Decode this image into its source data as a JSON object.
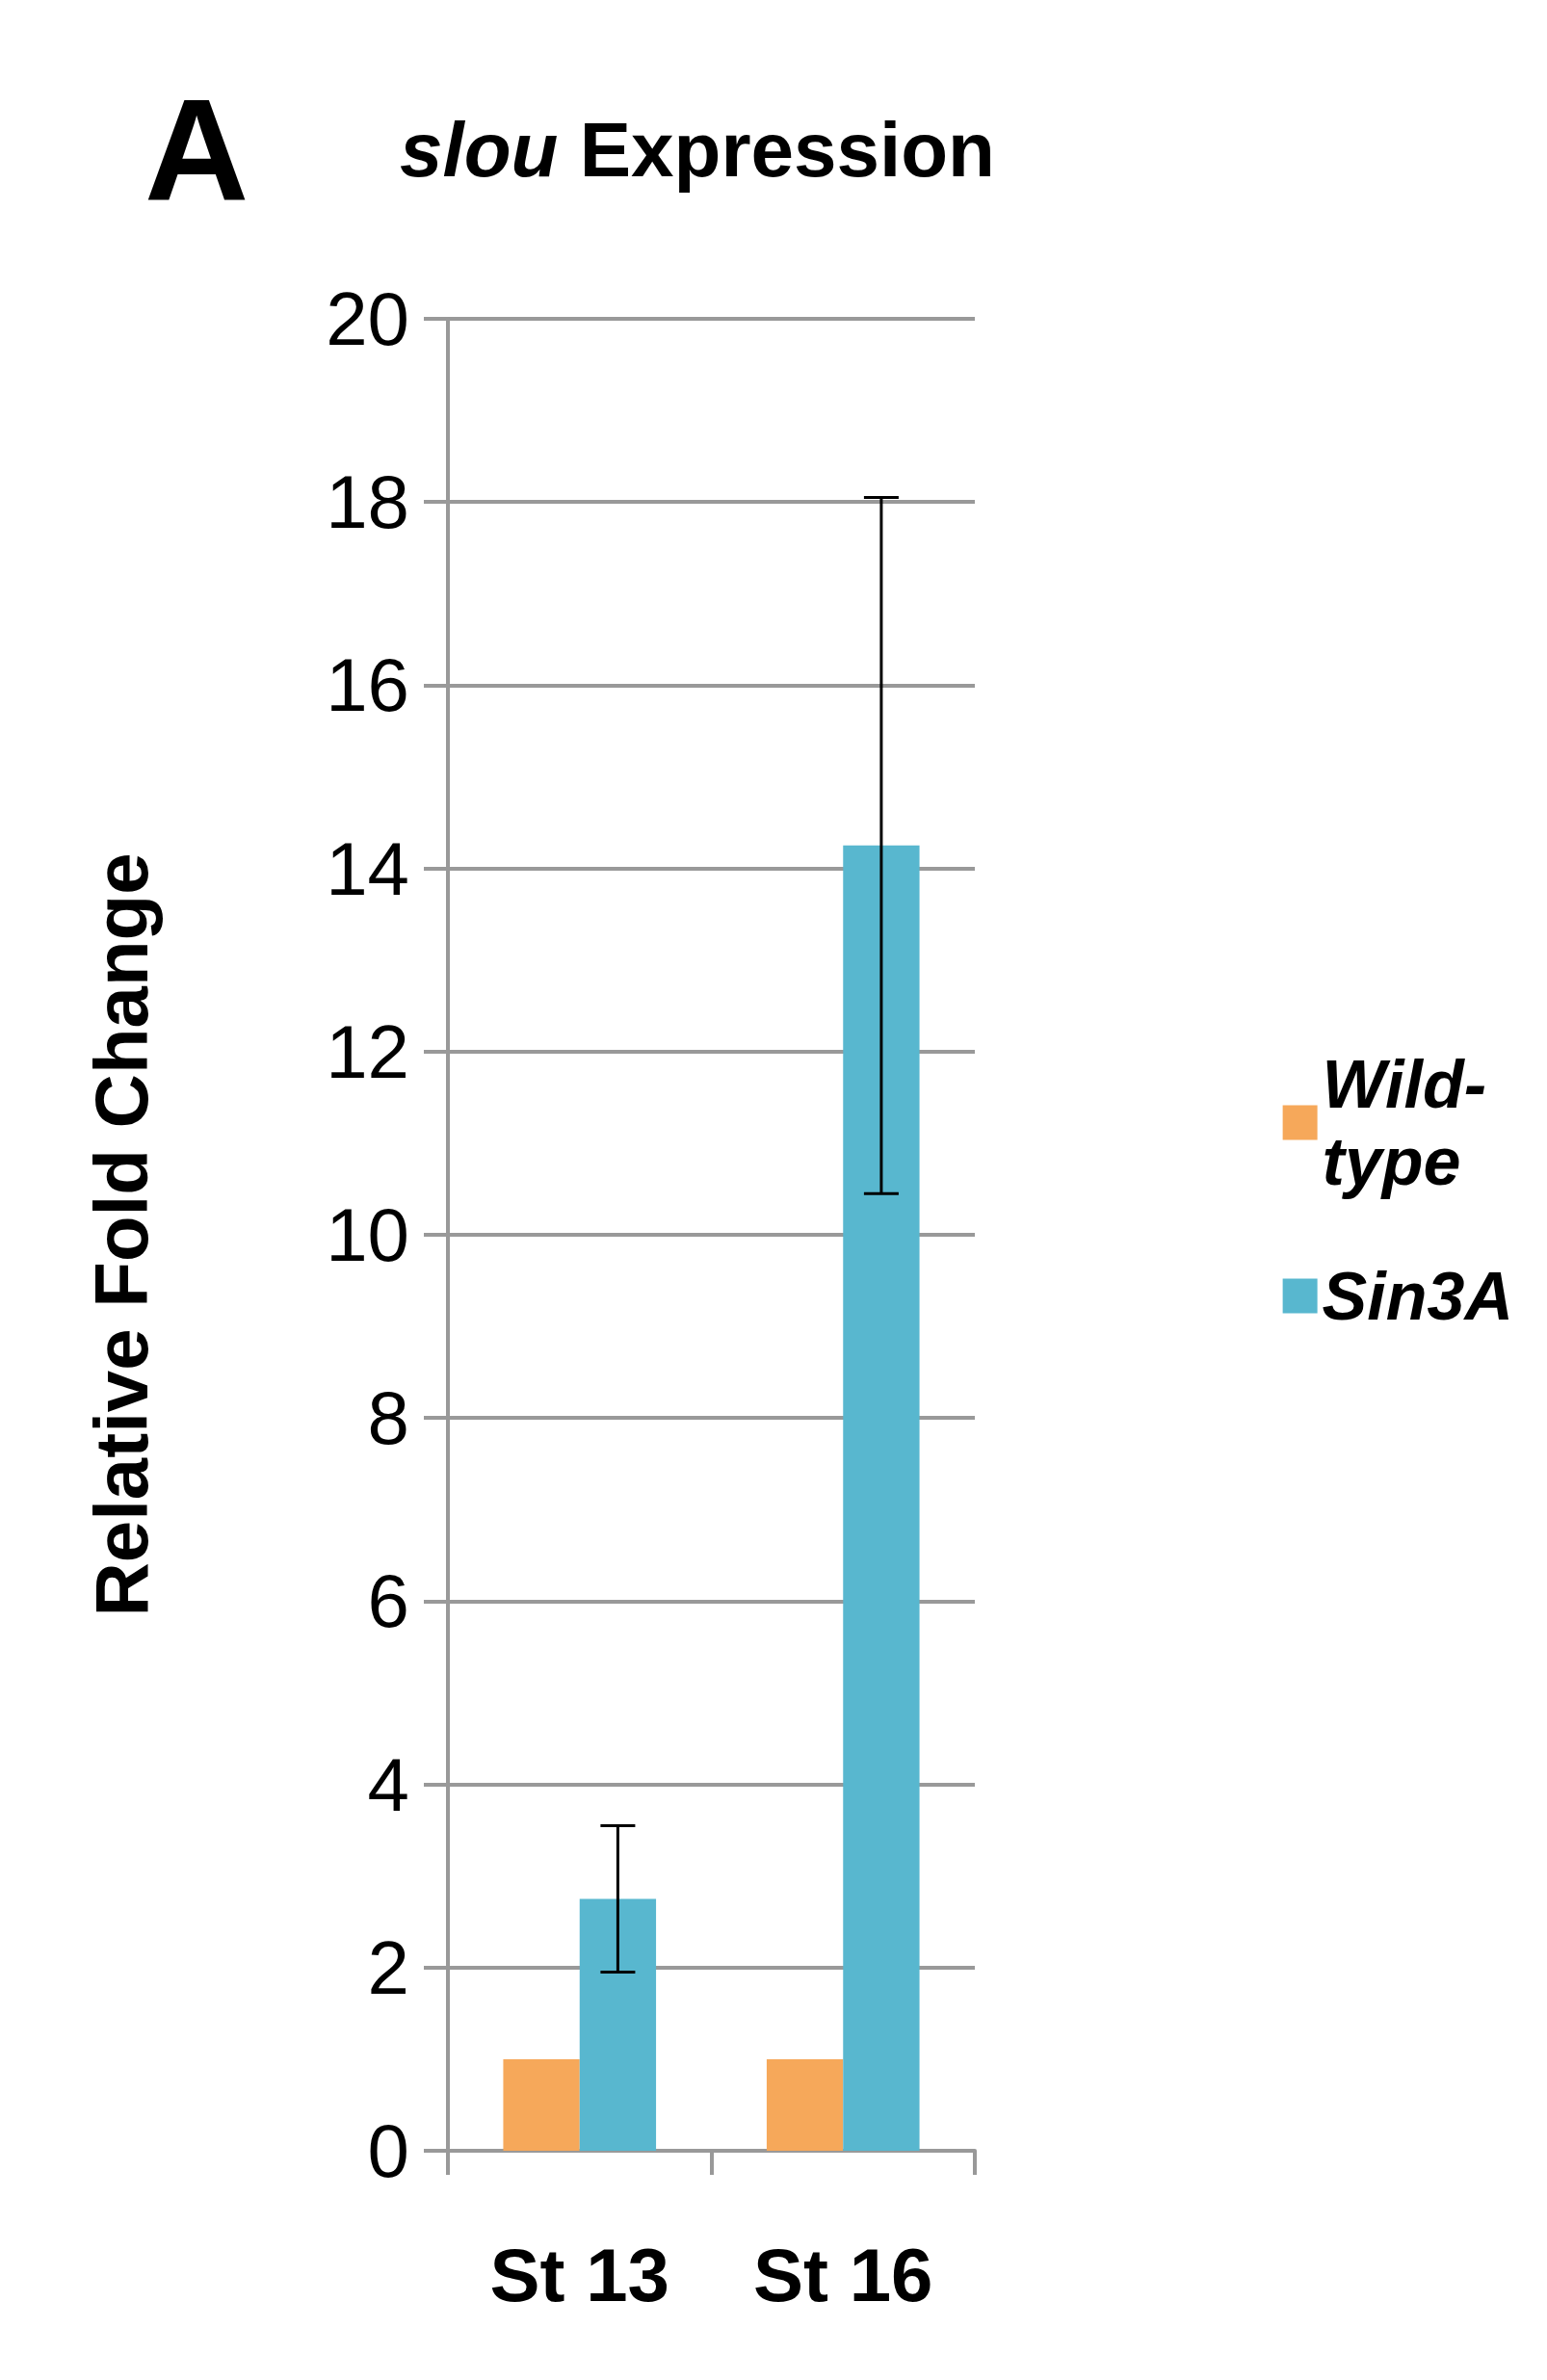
{
  "chart_data": {
    "type": "bar",
    "title": "slou Expression",
    "ylabel": "Relative Fold Change",
    "annotations": [
      "A"
    ],
    "categories": [
      "St 13",
      "St 16"
    ],
    "series": [
      {
        "name": "Wild-type",
        "color": "#f6a85a",
        "values": [
          1,
          1
        ],
        "errors": [
          null,
          null
        ]
      },
      {
        "name": "Sin3A",
        "color": "#58b7cf",
        "values": [
          2.75,
          14.25
        ],
        "errors": [
          [
            1.95,
            3.55
          ],
          [
            10.45,
            18.05
          ]
        ]
      }
    ],
    "ylim": [
      0,
      20
    ],
    "yticks": [
      0,
      2,
      4,
      6,
      8,
      10,
      12,
      14,
      16,
      18,
      20
    ],
    "grid": "y",
    "legend": "right"
  }
}
